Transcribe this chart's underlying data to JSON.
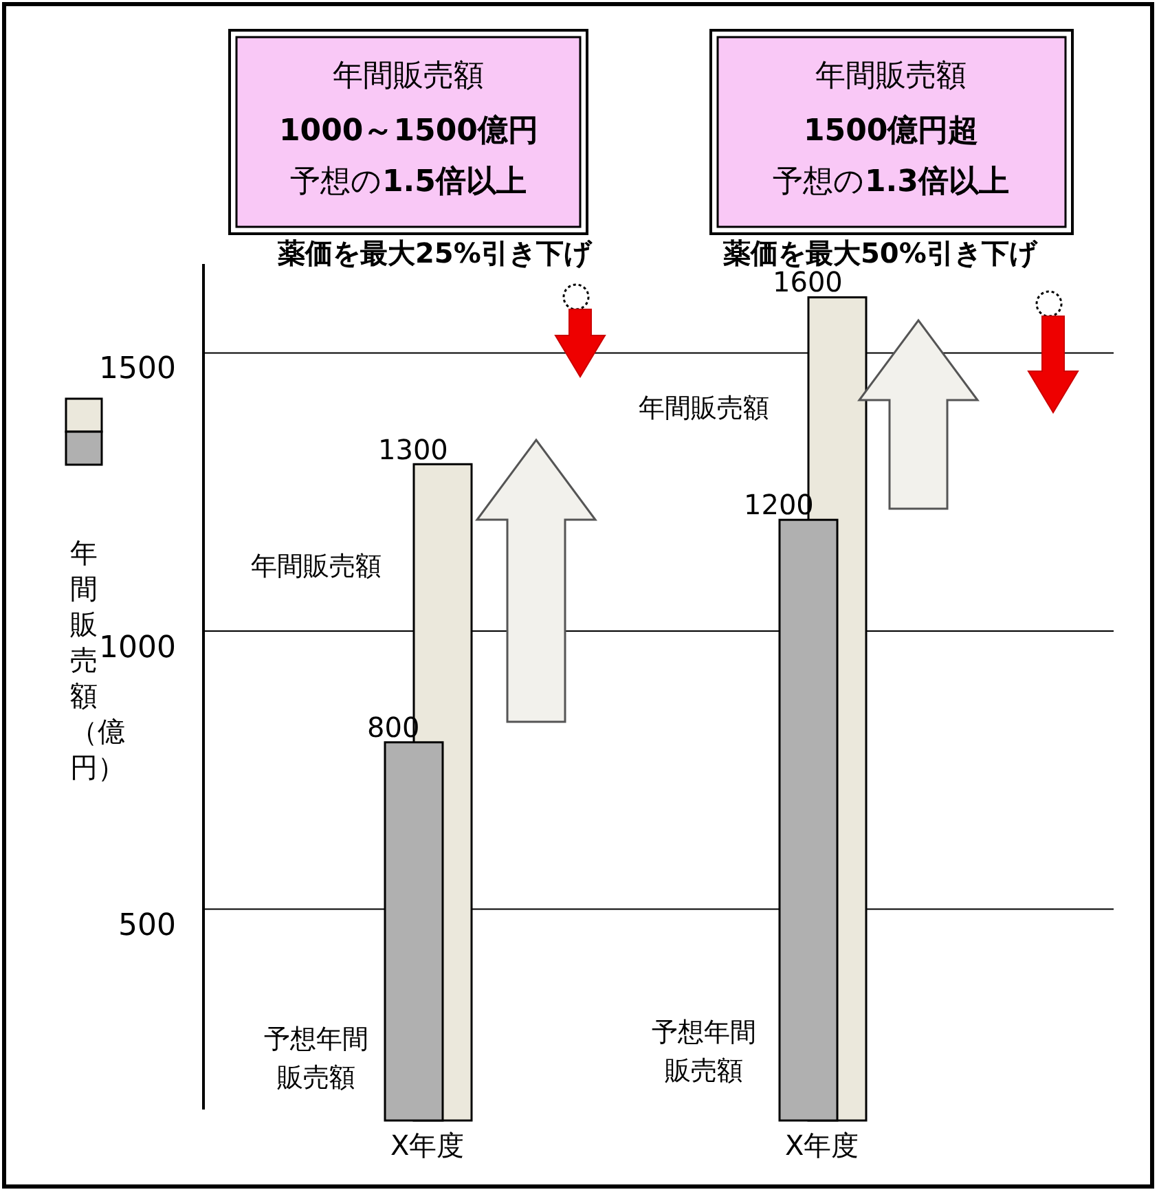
{
  "chart_data": {
    "type": "bar",
    "ylabel": "年間販売額（億円）",
    "categories": [
      "X年度",
      "X年度"
    ],
    "series": [
      {
        "name": "予想年間販売額",
        "color": "#b0b0b0",
        "values": [
          800,
          1200
        ]
      },
      {
        "name": "年間販売額",
        "color": "#ebe8dc",
        "values": [
          1300,
          1600
        ]
      }
    ],
    "ylim": [
      120,
      1660
    ],
    "yticks": [
      500,
      1000,
      1500
    ],
    "grid": "y",
    "data_labels": true,
    "annotations": [
      "年間販売額",
      "**1000～1500億円**",
      "予想の**1.5倍以上**",
      "年間販売額",
      "**1500億円超**",
      "予想の**1.3倍以上**",
      "**薬価を最大25%引き下げ**",
      "**薬価を最大50%引き下げ**"
    ]
  }
}
